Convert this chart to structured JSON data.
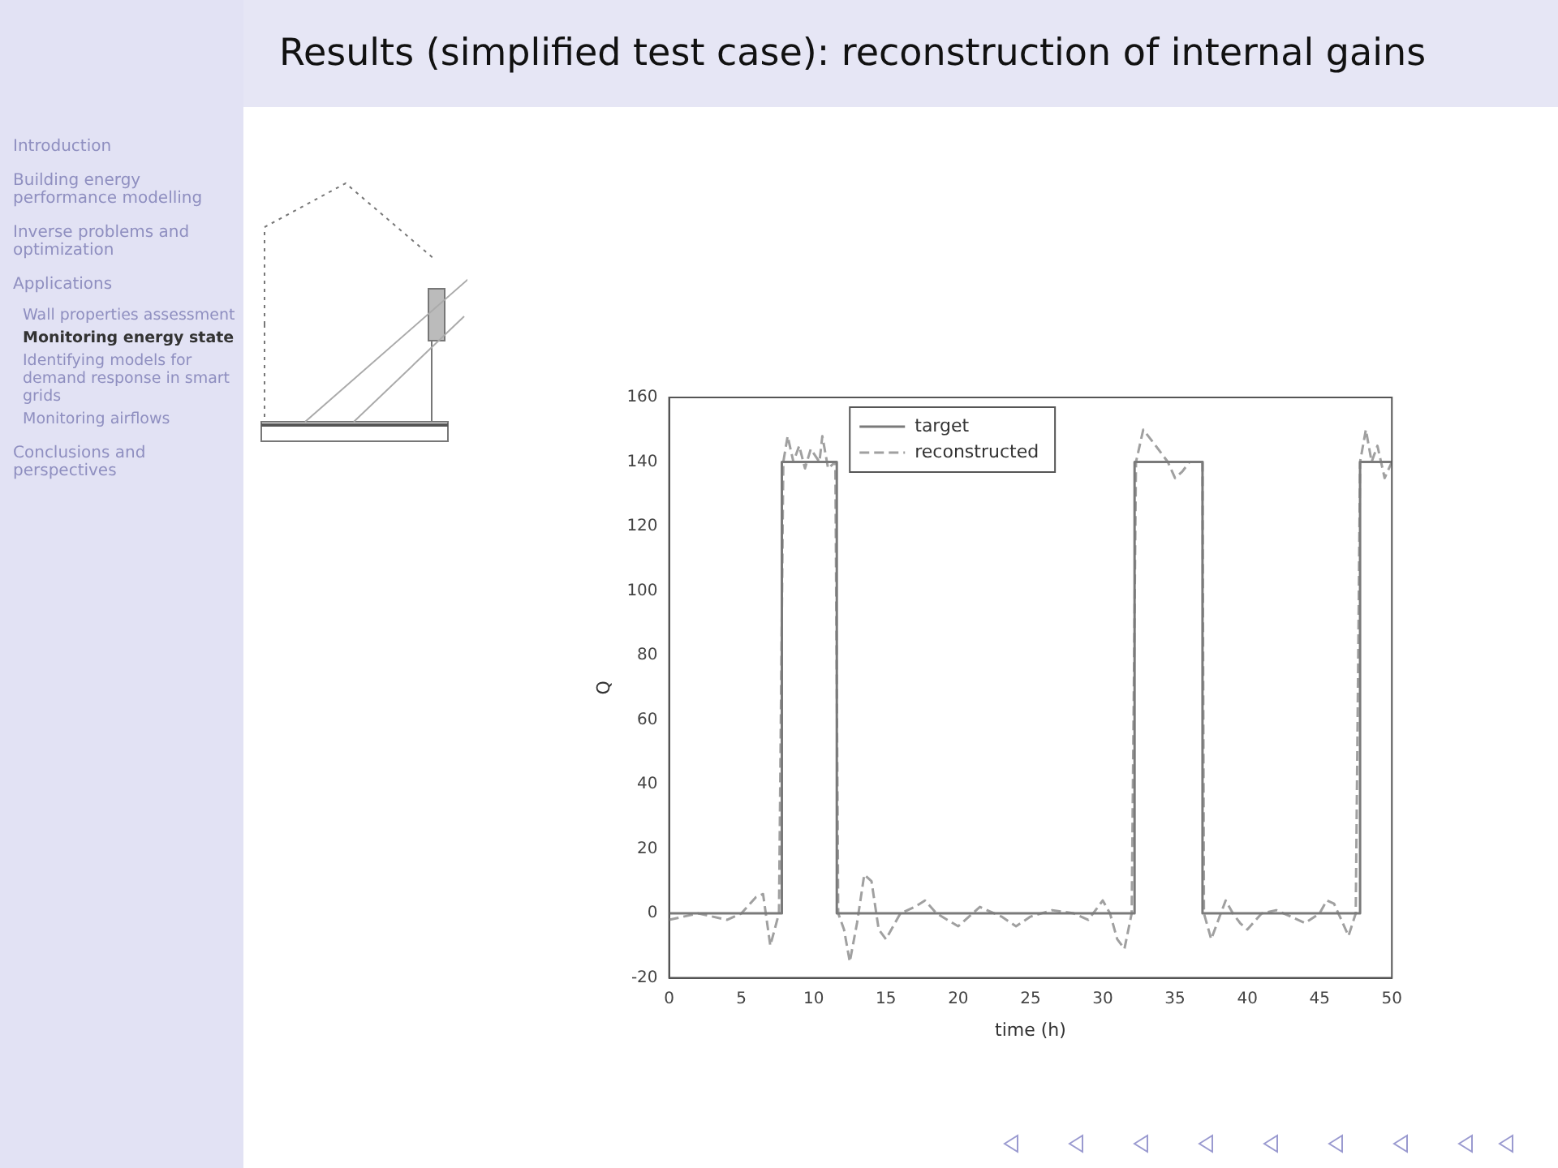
{
  "chart_data": {
    "type": "line",
    "title": "Results (simplified test case): reconstruction of internal gains",
    "xlabel": "time (h)",
    "ylabel": "Q",
    "annotations": [
      "Introduction",
      "Building energy performance modelling",
      "Inverse problems and optimization",
      "Applications",
      "Wall properties assessment",
      "Monitoring energy state",
      "Identifying models for demand response in smart grids",
      "Monitoring airflows",
      "Conclusions and perspectives"
    ],
    "xlim": [
      0,
      50
    ],
    "ylim": [
      -20,
      160
    ],
    "xticks": [
      0,
      5,
      10,
      15,
      20,
      25,
      30,
      35,
      40,
      45,
      50
    ],
    "yticks": [
      -20,
      0,
      20,
      40,
      60,
      80,
      100,
      120,
      140,
      160
    ],
    "legend": "top",
    "marker": "none",
    "grid": false,
    "series": [
      {
        "name": "target",
        "color": "#7a7a7a",
        "line_style": "solid",
        "x": [
          0,
          7.8,
          7.8,
          11.6,
          11.6,
          32.2,
          32.2,
          36.9,
          36.9,
          47.8,
          47.8,
          50
        ],
        "values": [
          0,
          0,
          140,
          140,
          0,
          0,
          140,
          140,
          0,
          0,
          140,
          140
        ]
      },
      {
        "name": "reconstructed",
        "color": "#a0a0a0",
        "line_style": "dashed",
        "x": [
          0,
          2,
          4,
          5,
          6,
          6.5,
          7,
          7.6,
          7.9,
          8.2,
          8.6,
          9,
          9.4,
          9.8,
          10.4,
          10.6,
          11,
          11.5,
          11.7,
          12.1,
          12.5,
          13,
          13.5,
          14,
          14.5,
          15,
          16,
          17,
          17.7,
          18.5,
          20,
          21.5,
          23,
          24,
          25,
          26.5,
          28,
          29,
          30,
          30.5,
          31,
          31.5,
          32,
          32.3,
          32.8,
          33.5,
          34.5,
          35,
          35.5,
          36,
          36.9,
          37,
          37.5,
          38,
          38.5,
          39,
          39.5,
          40,
          41,
          42,
          43,
          44,
          45,
          45.5,
          46,
          46.5,
          47,
          47.5,
          47.8,
          48.2,
          48.6,
          49,
          49.5,
          50
        ],
        "values": [
          -2,
          0,
          -2,
          0,
          5,
          6,
          -10,
          0,
          140,
          148,
          140,
          145,
          138,
          144,
          140,
          148,
          138,
          140,
          0,
          -5,
          -15,
          -3,
          12,
          10,
          -5,
          -8,
          0,
          2,
          4,
          0,
          -4,
          2,
          -1,
          -4,
          -1,
          1,
          0,
          -2,
          4,
          0,
          -8,
          -11,
          0,
          140,
          150,
          146,
          140,
          135,
          137,
          140,
          140,
          0,
          -8,
          -2,
          4,
          0,
          -3,
          -5,
          0,
          1,
          -1,
          -3,
          0,
          4,
          3,
          -2,
          -7,
          0,
          140,
          150,
          140,
          145,
          135,
          140
        ]
      }
    ]
  }
}
